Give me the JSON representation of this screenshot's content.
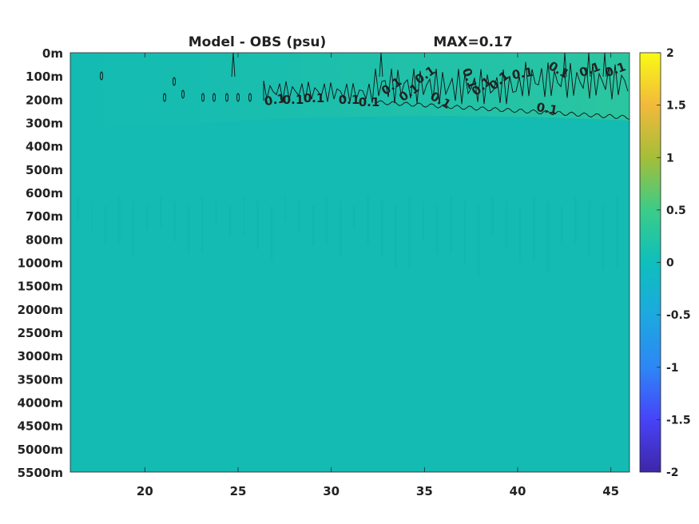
{
  "chart_data": {
    "type": "heatmap",
    "title_left": "Model - OBS (psu)",
    "title_right": "MAX=0.17",
    "x_ticks": [
      20,
      25,
      30,
      35,
      40,
      45
    ],
    "xlim": [
      16,
      46
    ],
    "y_ticks": [
      "0m",
      "100m",
      "200m",
      "300m",
      "400m",
      "500m",
      "600m",
      "700m",
      "800m",
      "1000m",
      "1500m",
      "2000m",
      "2500m",
      "3000m",
      "3500m",
      "4000m",
      "4500m",
      "5000m",
      "5500m"
    ],
    "colorbar": {
      "ticks": [
        2,
        1.5,
        1,
        0.5,
        0,
        -0.5,
        -1,
        -1.5,
        -2
      ],
      "range": [
        -2,
        2
      ],
      "colormap": [
        "#3e26a8",
        "#4743f8",
        "#2d87f6",
        "#1ca9df",
        "#0ebfbc",
        "#3bcc88",
        "#a5be38",
        "#f2b93c",
        "#f9fb14"
      ]
    },
    "background_value": 0.0,
    "field_color": "#13bbb2",
    "contour_level": 0.1,
    "contour_labels": [
      "0.1",
      "0.1",
      "0.1",
      "0.1",
      "0.1",
      "0.1",
      "0.1",
      "0.1",
      "0.1",
      "0.1",
      "0.1",
      "0.1",
      "0.1",
      "0.1",
      "0.1",
      "0.1",
      "0.1"
    ]
  }
}
